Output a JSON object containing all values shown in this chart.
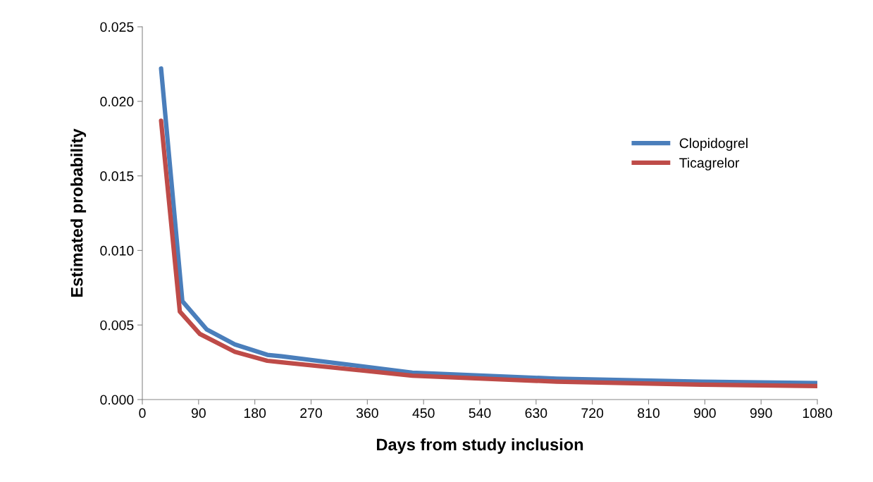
{
  "chart_data": {
    "type": "line",
    "xlabel": "Days from study inclusion",
    "ylabel": "Estimated probability",
    "xlim": [
      0,
      1080
    ],
    "xticks": [
      0,
      90,
      180,
      270,
      360,
      450,
      540,
      630,
      720,
      810,
      900,
      990,
      1080
    ],
    "ylim": [
      0,
      0.025
    ],
    "yticks": [
      {
        "value": 0,
        "label": "0.000"
      },
      {
        "value": 0.005,
        "label": "0.005"
      },
      {
        "value": 0.01,
        "label": "0.010"
      },
      {
        "value": 0.015,
        "label": "0.015"
      },
      {
        "value": 0.02,
        "label": "0.020"
      },
      {
        "value": 0.025,
        "label": "0.025"
      }
    ],
    "grid": false,
    "legend": "top right",
    "marker": "none",
    "line_style": "solid",
    "series": [
      {
        "name": "Clopidogrel",
        "color": "#4a7ebb",
        "x": [
          30,
          64,
          103,
          148,
          200,
          223,
          432,
          663,
          894,
          1080
        ],
        "values": [
          0.0222,
          0.0066,
          0.0047,
          0.0037,
          0.003,
          0.0029,
          0.0018,
          0.0014,
          0.0012,
          0.0011
        ]
      },
      {
        "name": "Ticagrelor",
        "color": "#be4b48",
        "x": [
          30,
          60,
          92,
          148,
          200,
          223,
          432,
          663,
          894,
          1080
        ],
        "values": [
          0.0187,
          0.0059,
          0.0044,
          0.0032,
          0.0026,
          0.0025,
          0.0016,
          0.0012,
          0.001,
          0.0009
        ]
      }
    ]
  }
}
